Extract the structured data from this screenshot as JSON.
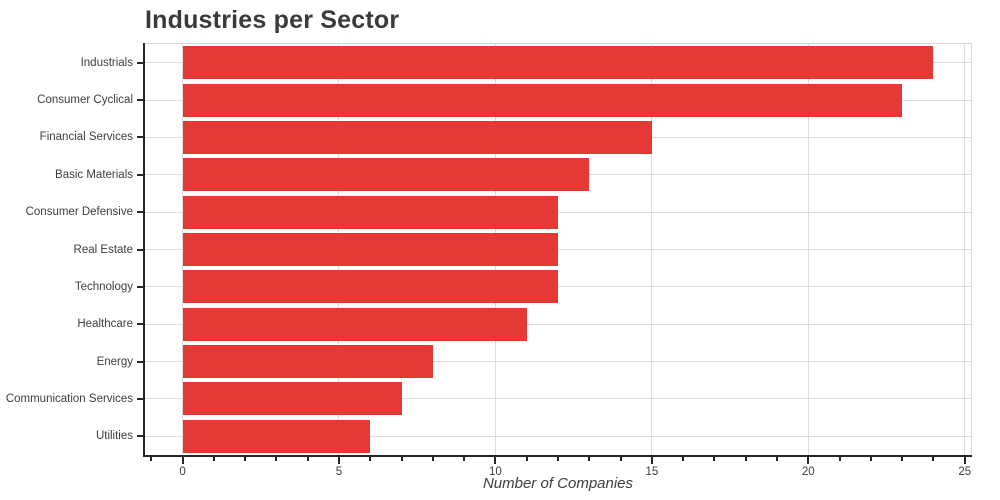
{
  "chart_data": {
    "type": "bar",
    "orientation": "horizontal",
    "title": "Industries per Sector",
    "xlabel": "Number of Companies",
    "ylabel": "",
    "categories": [
      "Industrials",
      "Consumer Cyclical",
      "Financial Services",
      "Basic Materials",
      "Consumer Defensive",
      "Real Estate",
      "Technology",
      "Healthcare",
      "Energy",
      "Communication Services",
      "Utilities"
    ],
    "values": [
      24,
      23,
      15,
      13,
      12,
      12,
      12,
      11,
      8,
      7,
      6
    ],
    "xlim": [
      -1.2,
      25.2
    ],
    "x_major_ticks": [
      0,
      5,
      10,
      15,
      20,
      25
    ],
    "x_major_tick_labels": [
      "0",
      "5",
      "10",
      "15",
      "20",
      "25"
    ],
    "x_minor_tick_step": 1,
    "grid": true,
    "legend": false,
    "colors": {
      "bar": "#e53935",
      "grid": "#dcdcdc",
      "axis": "#262626",
      "spine_light": "#d9d9d9",
      "tick_text": "#3d3d3d",
      "title_text": "#3a3a3a",
      "background": "#ffffff"
    }
  }
}
